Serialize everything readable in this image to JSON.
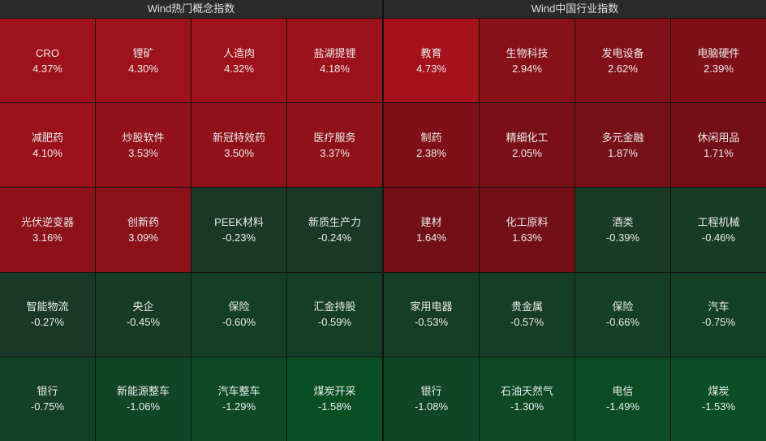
{
  "panels": [
    {
      "title": "Wind热门概念指数",
      "cells": [
        {
          "name": "CRO",
          "change": "4.37%"
        },
        {
          "name": "锂矿",
          "change": "4.30%"
        },
        {
          "name": "人造肉",
          "change": "4.32%"
        },
        {
          "name": "盐湖提锂",
          "change": "4.18%"
        },
        {
          "name": "减肥药",
          "change": "4.10%"
        },
        {
          "name": "炒股软件",
          "change": "3.53%"
        },
        {
          "name": "新冠特效药",
          "change": "3.50%"
        },
        {
          "name": "医疗服务",
          "change": "3.37%"
        },
        {
          "name": "光伏逆变器",
          "change": "3.16%"
        },
        {
          "name": "创新药",
          "change": "3.09%"
        },
        {
          "name": "PEEK材料",
          "change": "-0.23%"
        },
        {
          "name": "新质生产力",
          "change": "-0.24%"
        },
        {
          "name": "智能物流",
          "change": "-0.27%"
        },
        {
          "name": "央企",
          "change": "-0.45%"
        },
        {
          "name": "保险",
          "change": "-0.60%"
        },
        {
          "name": "汇金持股",
          "change": "-0.59%"
        },
        {
          "name": "银行",
          "change": "-0.75%"
        },
        {
          "name": "新能源整车",
          "change": "-1.06%"
        },
        {
          "name": "汽车整车",
          "change": "-1.29%"
        },
        {
          "name": "煤炭开采",
          "change": "-1.58%"
        }
      ]
    },
    {
      "title": "Wind中国行业指数",
      "cells": [
        {
          "name": "教育",
          "change": "4.73%"
        },
        {
          "name": "生物科技",
          "change": "2.94%"
        },
        {
          "name": "发电设备",
          "change": "2.62%"
        },
        {
          "name": "电脑硬件",
          "change": "2.39%"
        },
        {
          "name": "制药",
          "change": "2.38%"
        },
        {
          "name": "精细化工",
          "change": "2.05%"
        },
        {
          "name": "多元金融",
          "change": "1.87%"
        },
        {
          "name": "休闲用品",
          "change": "1.71%"
        },
        {
          "name": "建材",
          "change": "1.64%"
        },
        {
          "name": "化工原料",
          "change": "1.63%"
        },
        {
          "name": "酒类",
          "change": "-0.39%"
        },
        {
          "name": "工程机械",
          "change": "-0.46%"
        },
        {
          "name": "家用电器",
          "change": "-0.53%"
        },
        {
          "name": "贵金属",
          "change": "-0.57%"
        },
        {
          "name": "保险",
          "change": "-0.66%"
        },
        {
          "name": "汽车",
          "change": "-0.75%"
        },
        {
          "name": "银行",
          "change": "-1.08%"
        },
        {
          "name": "石油天然气",
          "change": "-1.30%"
        },
        {
          "name": "电信",
          "change": "-1.49%"
        },
        {
          "name": "煤炭",
          "change": "-1.53%"
        }
      ]
    }
  ]
}
